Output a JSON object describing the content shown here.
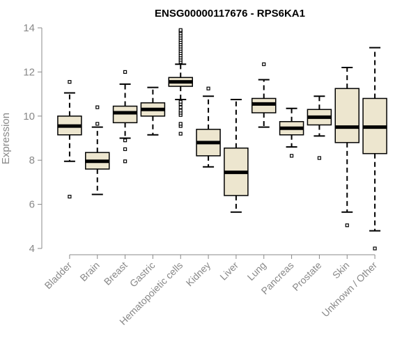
{
  "chart_data": {
    "type": "boxplot",
    "title": "ENSG00000117676 - RPS6KA1",
    "xlabel": "",
    "ylabel": "Expression",
    "ylim": [
      4,
      14
    ],
    "yticks": [
      4,
      6,
      8,
      10,
      12,
      14
    ],
    "grid": false,
    "legend": "none",
    "colors": {
      "box_fill": "#EDE6CF",
      "box_stroke": "#000000",
      "median": "#000000",
      "axis": "#888888",
      "text_axis": "#888888",
      "title": "#000000"
    },
    "categories": [
      "Bladder",
      "Brain",
      "Breast",
      "Gastric",
      "Hematopoietic cells",
      "Kidney",
      "Liver",
      "Lung",
      "Pancreas",
      "Prostate",
      "Skin",
      "Unknown / Other"
    ],
    "series": [
      {
        "name": "Bladder",
        "whisker_low": 7.95,
        "q1": 9.15,
        "median": 9.55,
        "q3": 10.0,
        "whisker_high": 11.05,
        "outliers": [
          6.35,
          11.55
        ]
      },
      {
        "name": "Brain",
        "whisker_low": 6.45,
        "q1": 7.6,
        "median": 7.95,
        "q3": 8.35,
        "whisker_high": 9.5,
        "outliers": [
          9.65,
          10.4
        ]
      },
      {
        "name": "Breast",
        "whisker_low": 9.0,
        "q1": 9.7,
        "median": 10.15,
        "q3": 10.45,
        "whisker_high": 11.45,
        "outliers": [
          8.9,
          8.5,
          7.95,
          12.0
        ]
      },
      {
        "name": "Gastric",
        "whisker_low": 9.15,
        "q1": 10.0,
        "median": 10.3,
        "q3": 10.6,
        "whisker_high": 11.3,
        "outliers": []
      },
      {
        "name": "Hematopoietic cells",
        "whisker_low": 10.75,
        "q1": 11.35,
        "median": 11.55,
        "q3": 11.75,
        "whisker_high": 12.35,
        "outliers": [
          9.2,
          9.55,
          9.65,
          10.05,
          10.15,
          10.25,
          10.4,
          10.55,
          10.65,
          12.45,
          12.55,
          12.65,
          12.75,
          12.85,
          12.95,
          13.05,
          13.15,
          13.25,
          13.35,
          13.45,
          13.55,
          13.65,
          13.75,
          13.85,
          13.9
        ]
      },
      {
        "name": "Kidney",
        "whisker_low": 7.7,
        "q1": 8.2,
        "median": 8.8,
        "q3": 9.4,
        "whisker_high": 10.9,
        "outliers": [
          11.25
        ]
      },
      {
        "name": "Liver",
        "whisker_low": 5.65,
        "q1": 6.4,
        "median": 7.45,
        "q3": 8.55,
        "whisker_high": 10.75,
        "outliers": []
      },
      {
        "name": "Lung",
        "whisker_low": 9.5,
        "q1": 10.15,
        "median": 10.55,
        "q3": 10.8,
        "whisker_high": 11.65,
        "outliers": [
          12.35
        ]
      },
      {
        "name": "Pancreas",
        "whisker_low": 8.6,
        "q1": 9.15,
        "median": 9.45,
        "q3": 9.75,
        "whisker_high": 10.35,
        "outliers": [
          8.2
        ]
      },
      {
        "name": "Prostate",
        "whisker_low": 9.1,
        "q1": 9.6,
        "median": 9.95,
        "q3": 10.3,
        "whisker_high": 10.9,
        "outliers": [
          8.1
        ]
      },
      {
        "name": "Skin",
        "whisker_low": 5.65,
        "q1": 8.8,
        "median": 9.5,
        "q3": 11.25,
        "whisker_high": 12.2,
        "outliers": [
          5.05
        ]
      },
      {
        "name": "Unknown / Other",
        "whisker_low": 4.8,
        "q1": 8.3,
        "median": 9.5,
        "q3": 10.8,
        "whisker_high": 13.1,
        "outliers": [
          4.0
        ]
      }
    ]
  }
}
